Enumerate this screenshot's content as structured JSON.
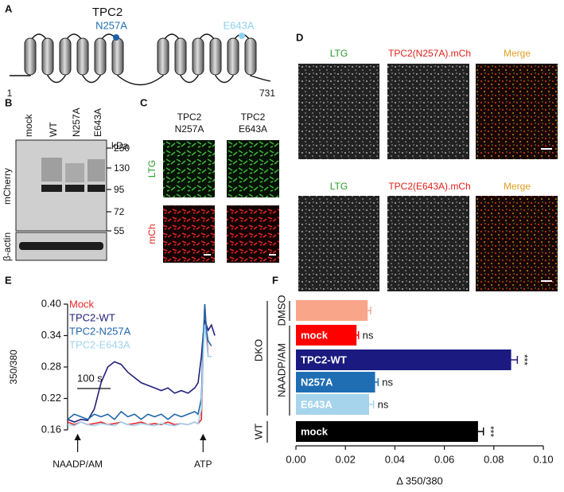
{
  "panels": {
    "A": {
      "letter": "A",
      "title": "TPC2",
      "mutations": [
        "N257A",
        "E643A"
      ],
      "residues": [
        1,
        731
      ]
    },
    "B": {
      "letter": "B",
      "lanes": [
        "mock",
        "WT",
        "N257A",
        "E643A"
      ],
      "unit": "kDa",
      "markers": [
        250,
        130,
        95,
        72,
        55
      ],
      "blots": [
        "mCherry",
        "β-actin"
      ]
    },
    "C": {
      "letter": "C",
      "columns": [
        [
          "TPC2",
          "N257A"
        ],
        [
          "TPC2",
          "E643A"
        ]
      ],
      "rows": [
        "LTG",
        "mCh"
      ]
    },
    "D": {
      "letter": "D",
      "rows": [
        [
          "LTG",
          "TPC2(N257A).mCh",
          "Merge"
        ],
        [
          "LTG",
          "TPC2(E643A).mCh",
          "Merge"
        ]
      ]
    },
    "E": {
      "letter": "E"
    },
    "F": {
      "letter": "F"
    }
  },
  "chart_data": [
    {
      "type": "line",
      "ylabel": "350/380",
      "x": [
        0,
        20,
        40,
        60,
        80,
        100,
        120,
        140,
        160,
        180,
        200,
        220,
        240,
        260,
        280,
        300,
        320,
        340,
        360,
        380,
        390,
        400,
        405,
        410,
        415,
        420,
        430,
        440
      ],
      "xlim": [
        0,
        440
      ],
      "ylim": [
        0.16,
        0.4
      ],
      "yticks": [
        0.16,
        0.22,
        0.28,
        0.34,
        {
          "value": 0.4,
          "label": "0.40"
        }
      ],
      "legend": "upper left",
      "series": [
        {
          "name": "Mock",
          "color": "#e8262a",
          "values": [
            0.175,
            0.17,
            0.175,
            0.17,
            0.172,
            0.175,
            0.17,
            0.172,
            0.175,
            0.17,
            0.172,
            0.175,
            0.17,
            0.172,
            0.17,
            0.175,
            0.17,
            0.172,
            0.17,
            0.175,
            0.172,
            0.18,
            0.3,
            0.4,
            0.35,
            0.3,
            null,
            null
          ]
        },
        {
          "name": "TPC2-WT",
          "color": "#22207a",
          "values": [
            0.18,
            0.175,
            0.18,
            0.178,
            0.2,
            0.25,
            0.28,
            0.29,
            0.285,
            0.27,
            0.26,
            0.25,
            0.245,
            0.24,
            0.235,
            0.24,
            0.23,
            0.235,
            0.23,
            0.24,
            0.25,
            0.3,
            0.34,
            0.37,
            0.36,
            0.35,
            0.36,
            0.34
          ]
        },
        {
          "name": "TPC2-N257A",
          "color": "#2166ac",
          "values": [
            0.18,
            0.19,
            0.185,
            0.18,
            0.19,
            0.185,
            0.19,
            0.18,
            0.195,
            0.185,
            0.19,
            0.18,
            0.19,
            0.185,
            0.19,
            0.18,
            0.19,
            0.185,
            0.19,
            0.195,
            0.19,
            0.22,
            0.33,
            0.4,
            0.35,
            0.33,
            0.32,
            null
          ]
        },
        {
          "name": "TPC2-E643A",
          "color": "#9fd3ee",
          "values": [
            0.17,
            0.168,
            0.175,
            0.17,
            0.168,
            0.172,
            0.17,
            0.168,
            0.175,
            0.17,
            0.168,
            0.172,
            0.17,
            0.168,
            0.172,
            0.17,
            0.168,
            0.172,
            0.17,
            0.175,
            0.172,
            0.2,
            0.3,
            0.36,
            0.33,
            0.3,
            0.3,
            null
          ]
        }
      ],
      "scale_bar": {
        "value": 100,
        "label": "100 s"
      },
      "annotations": [
        {
          "x": 30,
          "label": "NAADP/AM"
        },
        {
          "x": 405,
          "label": "ATP"
        }
      ]
    },
    {
      "type": "bar",
      "orientation": "horizontal",
      "xlabel": "Δ 350/380",
      "categories": [
        null,
        "mock",
        "TPC2-WT",
        "N257A",
        "E643A",
        "mock"
      ],
      "values": [
        0.029,
        0.0245,
        0.087,
        0.032,
        0.0296,
        0.0736
      ],
      "errors": [
        0.0012,
        0.0008,
        0.0025,
        0.0012,
        0.0018,
        0.0022
      ],
      "colors": [
        "#f9a58a",
        "#ff0000",
        "#1a1a80",
        "#1f6eb3",
        "#a6d4ec",
        "#000000"
      ],
      "significance": [
        null,
        "ns",
        "***",
        "ns",
        "ns",
        "***"
      ],
      "group_labels": [
        "DMSO",
        "NAADP/AM",
        "DKO",
        "WT"
      ],
      "xlim": [
        0,
        0.1
      ],
      "xticks": [
        {
          "value": 0,
          "label": "0.00"
        },
        0.02,
        0.04,
        0.06,
        0.08,
        {
          "value": 0.1,
          "label": "0.10"
        }
      ]
    }
  ]
}
